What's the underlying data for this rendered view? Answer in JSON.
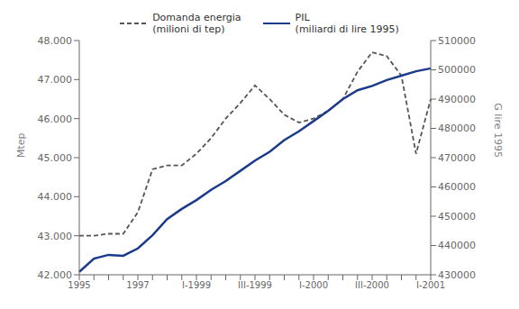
{
  "chart_data": {
    "type": "line",
    "categories": [
      "1995",
      null,
      null,
      null,
      "1997",
      null,
      null,
      null,
      "I-1999",
      null,
      null,
      null,
      "III-1999",
      null,
      null,
      null,
      "I-2000",
      null,
      null,
      null,
      "III-2000",
      null,
      null,
      null,
      "I-2001"
    ],
    "series": [
      {
        "name": "Domanda energia\n(milioni di tep)",
        "color": "#555555",
        "line_style": "dashed",
        "values": [
          43000,
          43000,
          43050,
          43050,
          43600,
          44700,
          44800,
          44800,
          45100,
          45500,
          46000,
          46400,
          46850,
          46500,
          46100,
          45900,
          46000,
          46200,
          46500,
          47200,
          47700,
          47600,
          47100,
          45100,
          46500
        ]
      },
      {
        "name": "PIL\n(miliardi di lire 1995)",
        "color": "#1a3a8a",
        "line_style": "solid",
        "axis": "y2",
        "values": [
          431000,
          435500,
          436800,
          436500,
          439000,
          443500,
          449000,
          452500,
          455500,
          459000,
          462000,
          465500,
          469000,
          472000,
          476000,
          479000,
          482500,
          486000,
          490000,
          493000,
          494500,
          496500,
          498000,
          499500,
          500500
        ]
      }
    ],
    "ylabel": "Mtep",
    "y2label": "G lire 1995",
    "ylim": [
      42000,
      48000
    ],
    "yticks": [
      {
        "value": 42000,
        "label": "42.000"
      },
      {
        "value": 43000,
        "label": "43.000"
      },
      {
        "value": 44000,
        "label": "44.000"
      },
      {
        "value": 45000,
        "label": "45.000"
      },
      {
        "value": 46000,
        "label": "46.000"
      },
      {
        "value": 47000,
        "label": "47.000"
      },
      {
        "value": 48000,
        "label": "48.000"
      }
    ],
    "y2lim": [
      430000,
      510000
    ],
    "y2ticks": [
      430000,
      440000,
      450000,
      460000,
      470000,
      480000,
      490000,
      500000,
      510000
    ],
    "grid": false,
    "legend": "top"
  }
}
